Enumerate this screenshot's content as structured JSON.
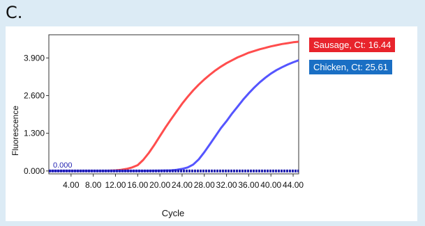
{
  "panel_label": "C.",
  "chart_data": {
    "type": "line",
    "xlabel": "Cycle",
    "ylabel": "Fluorescence",
    "xlim": [
      0,
      45
    ],
    "ylim": [
      -0.1,
      4.7
    ],
    "x_ticks": [
      "4.00",
      "8.00",
      "12.00",
      "16.00",
      "20.00",
      "24.00",
      "28.00",
      "32.00",
      "36.00",
      "40.00",
      "44.00"
    ],
    "x_tick_values": [
      4,
      8,
      12,
      16,
      20,
      24,
      28,
      32,
      36,
      40,
      44
    ],
    "y_ticks": [
      "0.000",
      "1.300",
      "2.600",
      "3.900"
    ],
    "y_tick_values": [
      0,
      1.3,
      2.6,
      3.9
    ],
    "threshold": {
      "label": "0.000",
      "value": 0.0
    },
    "grid": true,
    "legend_position": "right",
    "series": [
      {
        "name": "Sausage, Ct: 16.44",
        "color": "#ff4d4d",
        "x": [
          0,
          2,
          4,
          6,
          8,
          10,
          12,
          13,
          14,
          15,
          16,
          17,
          18,
          19,
          20,
          21,
          22,
          23,
          24,
          25,
          26,
          27,
          28,
          29,
          30,
          31,
          32,
          33,
          34,
          35,
          36,
          37,
          38,
          39,
          40,
          41,
          42,
          43,
          44,
          45
        ],
        "y": [
          0,
          0,
          0,
          0,
          0,
          0,
          0.02,
          0.04,
          0.07,
          0.12,
          0.2,
          0.38,
          0.62,
          0.9,
          1.2,
          1.5,
          1.78,
          2.05,
          2.32,
          2.56,
          2.78,
          2.98,
          3.16,
          3.32,
          3.47,
          3.6,
          3.72,
          3.82,
          3.92,
          4.0,
          4.08,
          4.14,
          4.2,
          4.25,
          4.3,
          4.34,
          4.38,
          4.41,
          4.44,
          4.46
        ]
      },
      {
        "name": "Chicken, Ct: 25.61",
        "color": "#5555ff",
        "x": [
          0,
          4,
          8,
          12,
          16,
          20,
          22,
          23,
          24,
          25,
          26,
          27,
          28,
          29,
          30,
          31,
          32,
          33,
          34,
          35,
          36,
          37,
          38,
          39,
          40,
          41,
          42,
          43,
          44,
          45
        ],
        "y": [
          0,
          0,
          0,
          0,
          0,
          0.01,
          0.02,
          0.04,
          0.07,
          0.12,
          0.22,
          0.4,
          0.65,
          0.92,
          1.2,
          1.48,
          1.72,
          1.98,
          2.22,
          2.46,
          2.68,
          2.88,
          3.06,
          3.22,
          3.36,
          3.48,
          3.58,
          3.67,
          3.75,
          3.82
        ]
      }
    ]
  }
}
